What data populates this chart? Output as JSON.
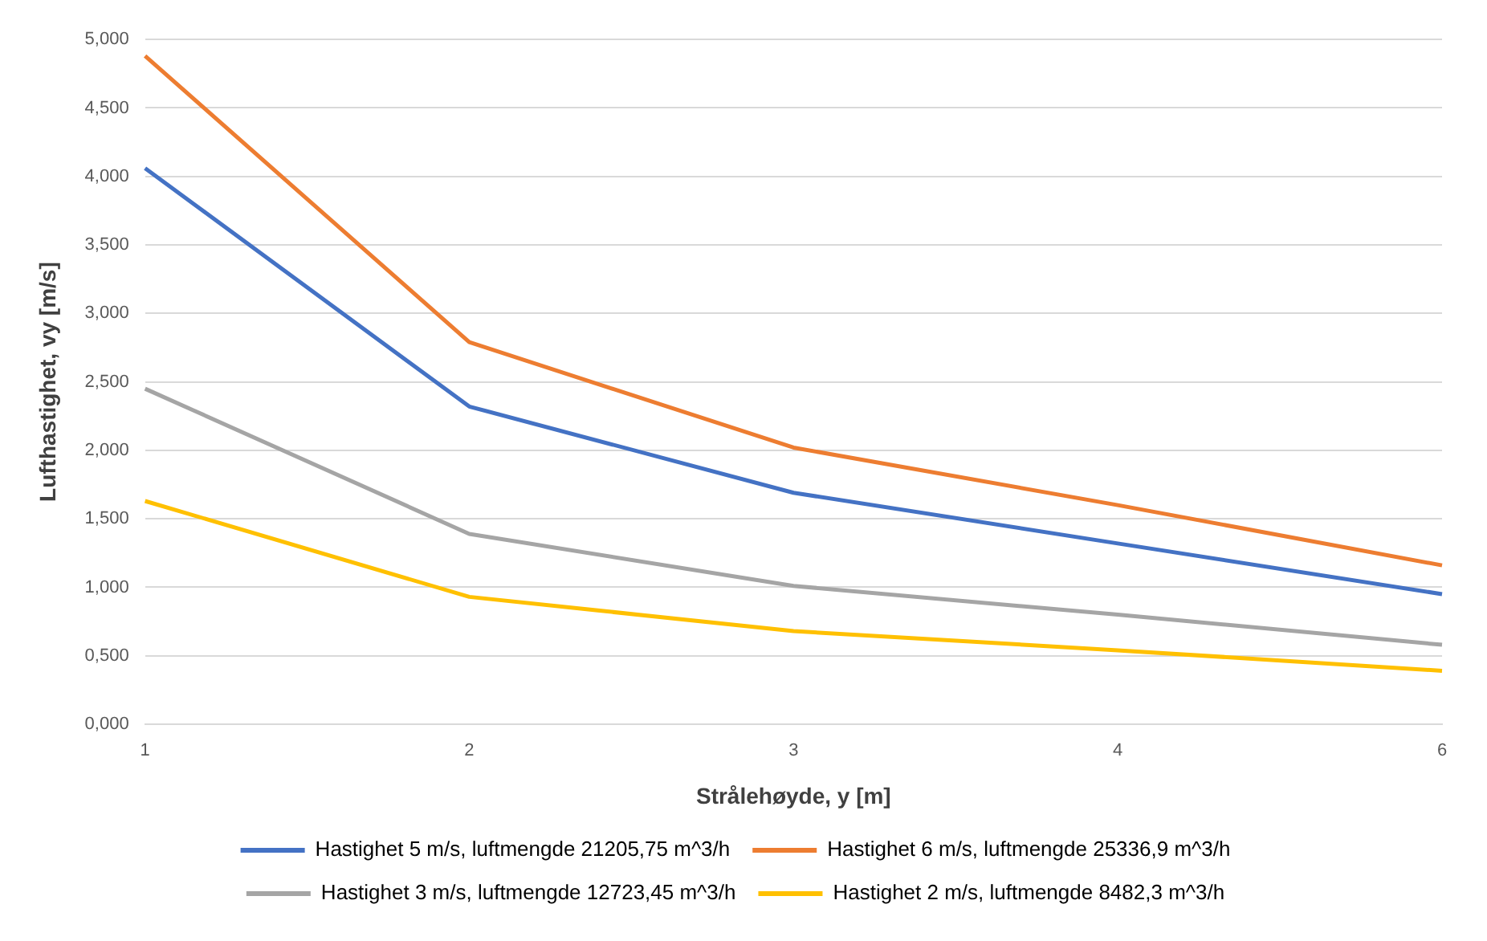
{
  "chart_data": {
    "type": "line",
    "xlabel": "Strålehøyde, y [m]",
    "ylabel": "Lufthastighet, vy [m/s]",
    "categories": [
      "1",
      "2",
      "3",
      "4",
      "6"
    ],
    "series": [
      {
        "name": "Hastighet 5 m/s, luftmengde 21205,75 m^3/h",
        "color": "#4472c4",
        "values": [
          4.06,
          2.32,
          1.69,
          1.32,
          0.95
        ]
      },
      {
        "name": "Hastighet 6 m/s, luftmengde 25336,9 m^3/h",
        "color": "#ed7d31",
        "values": [
          4.88,
          2.79,
          2.02,
          1.6,
          1.16
        ]
      },
      {
        "name": "Hastighet 3 m/s, luftmengde 12723,45 m^3/h",
        "color": "#a5a5a5",
        "values": [
          2.45,
          1.39,
          1.01,
          0.8,
          0.58
        ]
      },
      {
        "name": "Hastighet 2 m/s, luftmengde 8482,3 m^3/h",
        "color": "#ffc000",
        "values": [
          1.63,
          0.93,
          0.68,
          0.54,
          0.39
        ]
      }
    ],
    "ylim": [
      0,
      5
    ],
    "yticks": [
      {
        "value": 0,
        "label": "0,000"
      },
      {
        "value": 0.5,
        "label": "0,500"
      },
      {
        "value": 1,
        "label": "1,000"
      },
      {
        "value": 1.5,
        "label": "1,500"
      },
      {
        "value": 2,
        "label": "2,000"
      },
      {
        "value": 2.5,
        "label": "2,500"
      },
      {
        "value": 3,
        "label": "3,000"
      },
      {
        "value": 3.5,
        "label": "3,500"
      },
      {
        "value": 4,
        "label": "4,000"
      },
      {
        "value": 4.5,
        "label": "4,500"
      },
      {
        "value": 5,
        "label": "5,000"
      }
    ],
    "grid": "y",
    "legend": "bottom",
    "marker": "none",
    "line_style": "solid"
  }
}
